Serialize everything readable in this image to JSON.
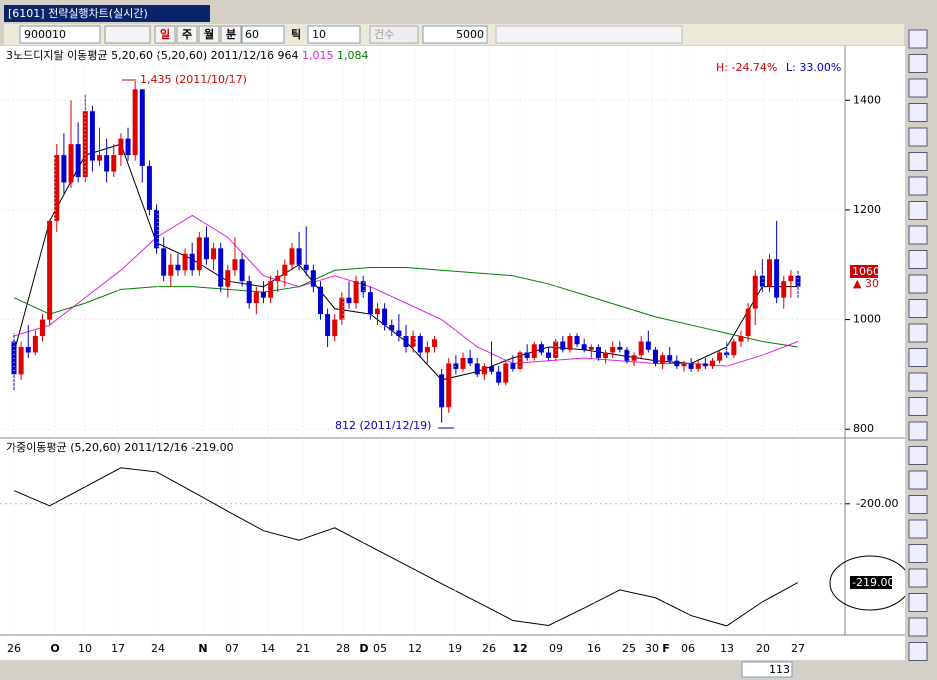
{
  "tab_title": "[6101] 전략실행차트(실시간)",
  "toolbar": {
    "code": "900010",
    "periods": [
      "일",
      "주",
      "월",
      "분"
    ],
    "minute": "60",
    "tick_label": "틱",
    "tick": "10",
    "count_label": "건수",
    "count": "5000"
  },
  "price_panel": {
    "legend": "3노드디지탈 이동평균 5,20,60 (5,20,60) 2011/12/16 964",
    "ma20_value": "1,015",
    "ma60_value": "1,084",
    "high_ratio": "H: -24.74%",
    "low_ratio": "L: 33.00%",
    "high_note": "1,435 (2011/10/17)",
    "low_note": "812 (2011/12/19)",
    "ylim": [
      784,
      1499
    ],
    "yticks": [
      1400,
      1200,
      1000,
      800
    ],
    "last": "1060",
    "change": "30",
    "candles": [
      [
        960,
        975,
        870,
        900
      ],
      [
        900,
        960,
        890,
        950
      ],
      [
        950,
        990,
        930,
        940
      ],
      [
        940,
        980,
        935,
        970
      ],
      [
        970,
        1010,
        960,
        1000
      ],
      [
        1000,
        1180,
        990,
        1180
      ],
      [
        1180,
        1320,
        1160,
        1300
      ],
      [
        1300,
        1340,
        1230,
        1250
      ],
      [
        1250,
        1400,
        1240,
        1320
      ],
      [
        1320,
        1360,
        1250,
        1260
      ],
      [
        1260,
        1410,
        1250,
        1380
      ],
      [
        1380,
        1390,
        1270,
        1290
      ],
      [
        1290,
        1350,
        1280,
        1300
      ],
      [
        1300,
        1330,
        1250,
        1270
      ],
      [
        1270,
        1320,
        1260,
        1300
      ],
      [
        1300,
        1340,
        1280,
        1330
      ],
      [
        1330,
        1350,
        1290,
        1300
      ],
      [
        1300,
        1435,
        1290,
        1420
      ],
      [
        1420,
        1420,
        1250,
        1280
      ],
      [
        1280,
        1290,
        1190,
        1200
      ],
      [
        1200,
        1210,
        1120,
        1130
      ],
      [
        1130,
        1150,
        1070,
        1080
      ],
      [
        1080,
        1120,
        1060,
        1100
      ],
      [
        1100,
        1120,
        1080,
        1090
      ],
      [
        1090,
        1130,
        1080,
        1120
      ],
      [
        1120,
        1140,
        1080,
        1090
      ],
      [
        1090,
        1160,
        1080,
        1150
      ],
      [
        1150,
        1170,
        1100,
        1110
      ],
      [
        1110,
        1140,
        1090,
        1130
      ],
      [
        1130,
        1140,
        1050,
        1060
      ],
      [
        1060,
        1100,
        1040,
        1090
      ],
      [
        1090,
        1150,
        1080,
        1110
      ],
      [
        1110,
        1120,
        1060,
        1070
      ],
      [
        1070,
        1080,
        1020,
        1030
      ],
      [
        1030,
        1060,
        1010,
        1050
      ],
      [
        1050,
        1070,
        1030,
        1040
      ],
      [
        1040,
        1080,
        1030,
        1070
      ],
      [
        1070,
        1090,
        1050,
        1080
      ],
      [
        1080,
        1110,
        1060,
        1100
      ],
      [
        1100,
        1140,
        1090,
        1130
      ],
      [
        1130,
        1160,
        1090,
        1100
      ],
      [
        1100,
        1170,
        1080,
        1090
      ],
      [
        1090,
        1100,
        1050,
        1060
      ],
      [
        1060,
        1070,
        1000,
        1010
      ],
      [
        1010,
        1020,
        950,
        970
      ],
      [
        970,
        1010,
        960,
        1000
      ],
      [
        1000,
        1050,
        990,
        1040
      ],
      [
        1040,
        1070,
        1020,
        1030
      ],
      [
        1030,
        1080,
        1020,
        1070
      ],
      [
        1070,
        1080,
        1040,
        1050
      ],
      [
        1050,
        1060,
        1000,
        1010
      ],
      [
        1010,
        1030,
        990,
        1020
      ],
      [
        1020,
        1030,
        980,
        990
      ],
      [
        990,
        1000,
        970,
        980
      ],
      [
        980,
        1010,
        960,
        970
      ],
      [
        970,
        990,
        940,
        950
      ],
      [
        950,
        980,
        940,
        970
      ],
      [
        970,
        975,
        930,
        940
      ],
      [
        940,
        960,
        920,
        950
      ],
      [
        950,
        970,
        940,
        964
      ],
      [
        900,
        910,
        812,
        840
      ],
      [
        840,
        930,
        830,
        920
      ],
      [
        920,
        935,
        900,
        910
      ],
      [
        910,
        940,
        905,
        930
      ],
      [
        930,
        945,
        915,
        920
      ],
      [
        920,
        930,
        895,
        900
      ],
      [
        900,
        920,
        890,
        915
      ],
      [
        915,
        960,
        900,
        905
      ],
      [
        905,
        915,
        880,
        885
      ],
      [
        885,
        925,
        880,
        920
      ],
      [
        920,
        935,
        905,
        910
      ],
      [
        910,
        945,
        905,
        940
      ],
      [
        940,
        955,
        925,
        930
      ],
      [
        930,
        960,
        925,
        955
      ],
      [
        955,
        960,
        935,
        940
      ],
      [
        940,
        950,
        925,
        930
      ],
      [
        930,
        965,
        925,
        960
      ],
      [
        960,
        970,
        940,
        945
      ],
      [
        945,
        975,
        940,
        970
      ],
      [
        970,
        975,
        950,
        955
      ],
      [
        955,
        965,
        940,
        945
      ],
      [
        945,
        955,
        930,
        950
      ],
      [
        950,
        955,
        925,
        930
      ],
      [
        930,
        945,
        920,
        940
      ],
      [
        940,
        960,
        930,
        950
      ],
      [
        950,
        960,
        940,
        945
      ],
      [
        945,
        950,
        920,
        925
      ],
      [
        925,
        940,
        915,
        935
      ],
      [
        935,
        970,
        930,
        960
      ],
      [
        960,
        980,
        940,
        945
      ],
      [
        945,
        950,
        915,
        920
      ],
      [
        920,
        940,
        910,
        935
      ],
      [
        935,
        950,
        920,
        925
      ],
      [
        925,
        935,
        910,
        915
      ],
      [
        915,
        925,
        905,
        920
      ],
      [
        920,
        930,
        905,
        910
      ],
      [
        910,
        925,
        905,
        920
      ],
      [
        920,
        930,
        910,
        915
      ],
      [
        915,
        930,
        910,
        925
      ],
      [
        925,
        945,
        920,
        940
      ],
      [
        940,
        960,
        930,
        935
      ],
      [
        935,
        965,
        930,
        960
      ],
      [
        960,
        980,
        950,
        970
      ],
      [
        970,
        1030,
        960,
        1020
      ],
      [
        1020,
        1090,
        990,
        1080
      ],
      [
        1080,
        1110,
        1050,
        1060
      ],
      [
        1060,
        1120,
        1050,
        1110
      ],
      [
        1110,
        1180,
        1030,
        1040
      ],
      [
        1040,
        1080,
        1020,
        1070
      ],
      [
        1070,
        1090,
        1040,
        1080
      ],
      [
        1080,
        1090,
        1040,
        1060
      ]
    ],
    "ma": [
      {
        "color": "#000000",
        "values": [
          940,
          1180,
          1300,
          1320,
          1140,
          1110,
          1070,
          1060,
          1100,
          1020,
          1010,
          960,
          890,
          905,
          930,
          950,
          945,
          935,
          925,
          920,
          950,
          1060,
          1060
        ]
      },
      {
        "color": "#e020e0",
        "values": [
          970,
          990,
          1040,
          1090,
          1150,
          1190,
          1150,
          1080,
          1060,
          1080,
          1060,
          1030,
          1000,
          950,
          920,
          925,
          930,
          925,
          920,
          920,
          915,
          935,
          960
        ]
      },
      {
        "color": "#008000",
        "values": [
          1040,
          1010,
          1030,
          1055,
          1060,
          1060,
          1055,
          1050,
          1060,
          1090,
          1095,
          1095,
          1090,
          1085,
          1080,
          1065,
          1045,
          1025,
          1005,
          990,
          975,
          960,
          950
        ]
      }
    ]
  },
  "lower_panel": {
    "title": "가중이동평균 (5,20,60) 2011/12/16 -219.00",
    "ylim": [
      -231.7,
      -184.1
    ],
    "yticks": [
      {
        "value": -200,
        "label": "-200.00"
      }
    ],
    "values": [
      -196.8,
      -200.5,
      -195.9,
      -191.3,
      -192.3,
      -197,
      -201.8,
      -206.5,
      -208.8,
      -205.8,
      -210.3,
      -214.8,
      -219.3,
      -223.7,
      -228.2,
      -229.4,
      -225.2,
      -220.8,
      -222.7,
      -227,
      -229.5,
      -223.7,
      -219
    ],
    "last": "-219.00"
  },
  "x_axis": [
    "26",
    "O",
    "10",
    "17",
    "24",
    "N",
    "07",
    "14",
    "21",
    "28",
    "D",
    "05",
    "12",
    "19",
    "26",
    "12",
    "09",
    "16",
    "25",
    "30",
    "F",
    "06",
    "13",
    "20",
    "27"
  ],
  "scroll_value": "113"
}
